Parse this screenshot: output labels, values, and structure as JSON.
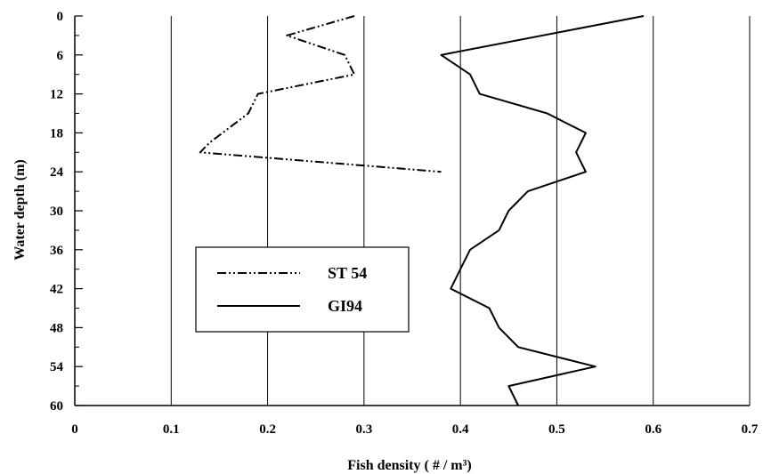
{
  "chart_data": {
    "type": "line",
    "orientation": "depth-profile",
    "xlabel": "Fish density ( # / m³)",
    "ylabel": "Water depth (m)",
    "xlim": [
      0,
      0.7
    ],
    "ylim": [
      0,
      60
    ],
    "y_inverted": true,
    "x_ticks": [
      0,
      0.1,
      0.2,
      0.3,
      0.4,
      0.5,
      0.6,
      0.7
    ],
    "x_tick_labels": [
      "0",
      "0.1",
      "0.2",
      "0.3",
      "0.4",
      "0.5",
      "0.6",
      "0.7"
    ],
    "y_ticks": [
      0,
      6,
      12,
      18,
      24,
      30,
      36,
      42,
      48,
      54,
      60
    ],
    "y_tick_labels": [
      "0",
      "6",
      "12",
      "18",
      "24",
      "30",
      "36",
      "42",
      "48",
      "54",
      "60"
    ],
    "grid": "vertical",
    "legend_position": "center-left",
    "series": [
      {
        "name": "ST 54",
        "style": "dash-dot-dot",
        "points": [
          [
            0.29,
            0
          ],
          [
            0.22,
            3
          ],
          [
            0.28,
            6
          ],
          [
            0.29,
            9
          ],
          [
            0.19,
            12
          ],
          [
            0.18,
            15
          ],
          [
            0.14,
            19.5
          ],
          [
            0.13,
            21
          ],
          [
            0.38,
            24
          ]
        ]
      },
      {
        "name": "GI94",
        "style": "solid",
        "points": [
          [
            0.59,
            0
          ],
          [
            0.38,
            6
          ],
          [
            0.41,
            9
          ],
          [
            0.42,
            12
          ],
          [
            0.49,
            15
          ],
          [
            0.53,
            18
          ],
          [
            0.52,
            21
          ],
          [
            0.53,
            24
          ],
          [
            0.47,
            27
          ],
          [
            0.45,
            30
          ],
          [
            0.44,
            33
          ],
          [
            0.41,
            36
          ],
          [
            0.4,
            39
          ],
          [
            0.39,
            42
          ],
          [
            0.43,
            45
          ],
          [
            0.44,
            48
          ],
          [
            0.46,
            51
          ],
          [
            0.54,
            54
          ],
          [
            0.45,
            57
          ],
          [
            0.46,
            60
          ]
        ]
      }
    ]
  }
}
